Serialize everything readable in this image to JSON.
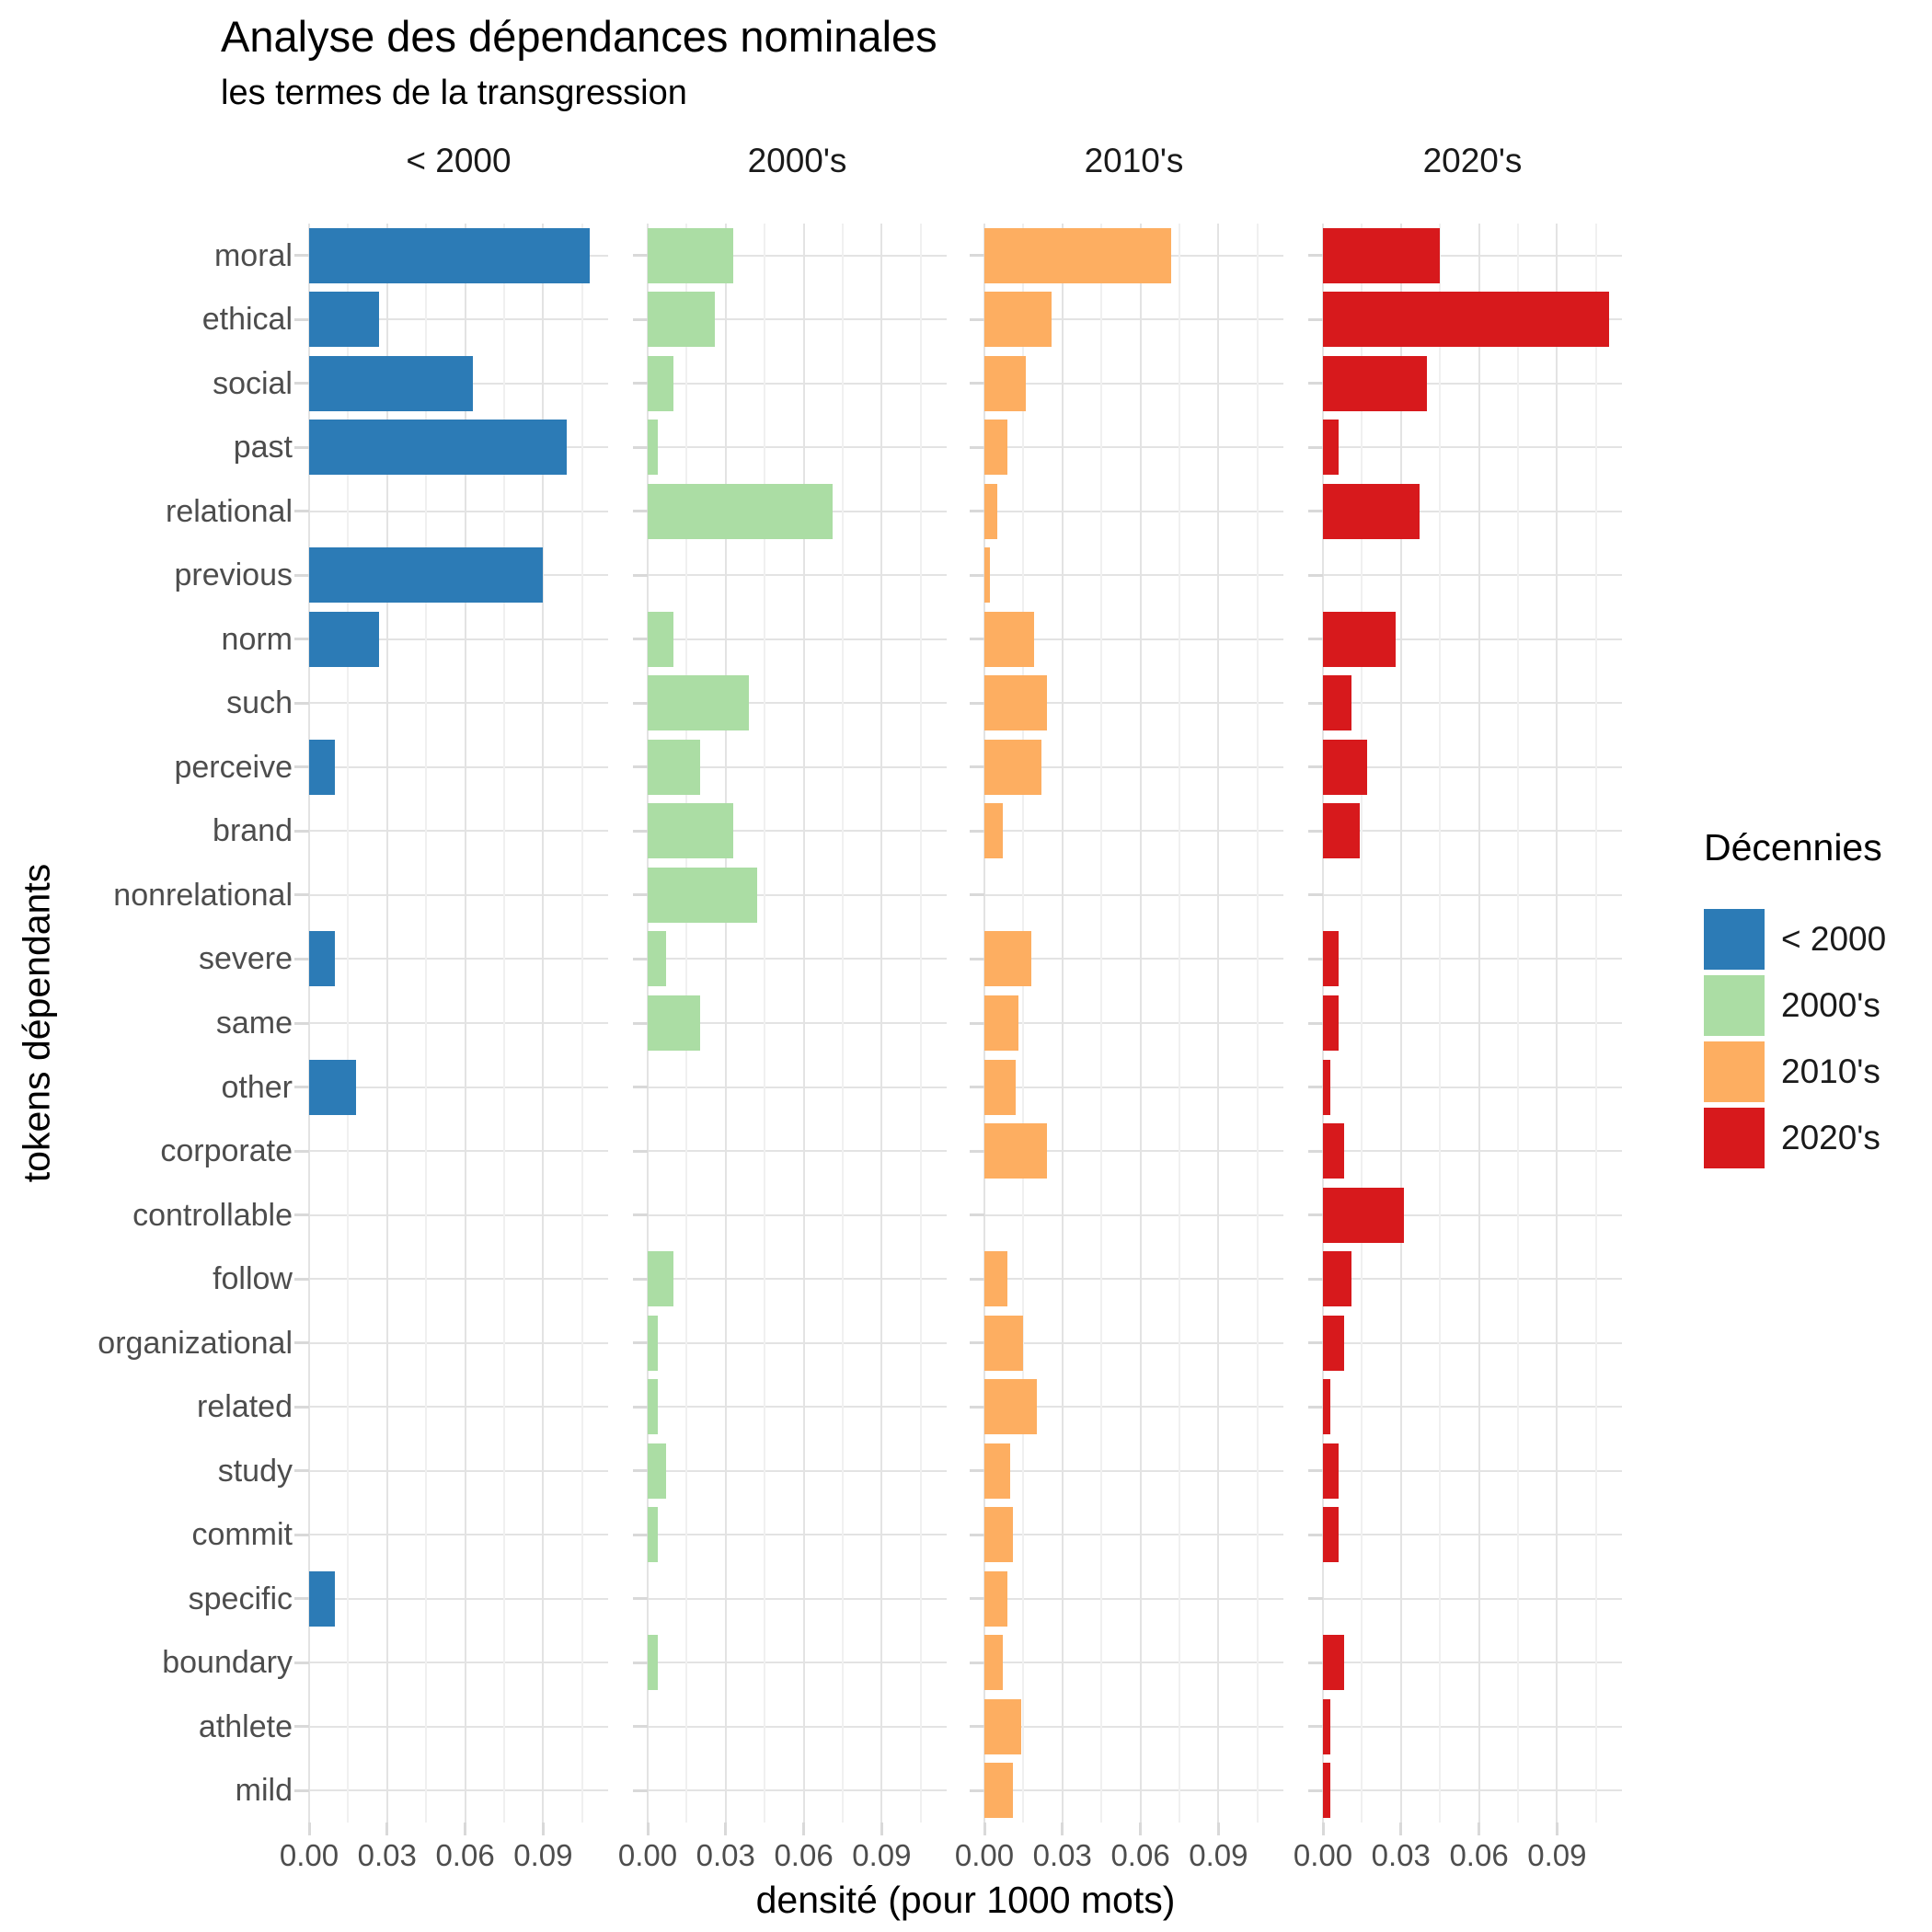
{
  "title": "Analyse des dépendances nominales",
  "subtitle": "les termes de la transgression",
  "axes": {
    "x_title": "densité (pour 1000 mots)",
    "y_title": "tokens dépendants",
    "x_tick_labels": [
      "0.00",
      "0.03",
      "0.06",
      "0.09"
    ]
  },
  "legend": {
    "title": "Décennies",
    "items": [
      {
        "label": "< 2000",
        "color": "#2C7BB6"
      },
      {
        "label": "2000's",
        "color": "#ABDDA4"
      },
      {
        "label": "2010's",
        "color": "#FDAE61"
      },
      {
        "label": "2020's",
        "color": "#D7191C"
      }
    ]
  },
  "chart_data": {
    "type": "bar",
    "orientation": "horizontal",
    "title": "Analyse des dépendances nominales",
    "subtitle": "les termes de la transgression",
    "xlabel": "densité (pour 1000 mots)",
    "ylabel": "tokens dépendants",
    "grid": true,
    "legend_position": "right",
    "facets": [
      "< 2000",
      "2000's",
      "2010's",
      "2020's"
    ],
    "xlim": [
      0,
      0.115
    ],
    "x_tick_values": [
      0,
      0.03,
      0.06,
      0.09
    ],
    "x_minor_tick_values": [
      0.015,
      0.045,
      0.075,
      0.105
    ],
    "categories": [
      "moral",
      "ethical",
      "social",
      "past",
      "relational",
      "previous",
      "norm",
      "such",
      "perceive",
      "brand",
      "nonrelational",
      "severe",
      "same",
      "other",
      "corporate",
      "controllable",
      "follow",
      "organizational",
      "related",
      "study",
      "commit",
      "specific",
      "boundary",
      "athlete",
      "mild"
    ],
    "series": [
      {
        "name": "< 2000",
        "key": "pre-2000",
        "color": "#2C7BB6",
        "values": [
          0.108,
          0.027,
          0.063,
          0.099,
          0,
          0.09,
          0.027,
          0,
          0.01,
          0,
          0,
          0.01,
          0,
          0.018,
          0,
          0,
          0,
          0,
          0,
          0,
          0,
          0.01,
          0,
          0,
          0
        ]
      },
      {
        "name": "2000's",
        "key": "2000s",
        "color": "#ABDDA4",
        "values": [
          0.033,
          0.026,
          0.01,
          0.004,
          0.071,
          0,
          0.01,
          0.039,
          0.02,
          0.033,
          0.042,
          0.007,
          0.02,
          0,
          0,
          0,
          0.01,
          0.004,
          0.004,
          0.007,
          0.004,
          0,
          0.004,
          0,
          0
        ]
      },
      {
        "name": "2010's",
        "key": "2010s",
        "color": "#FDAE61",
        "values": [
          0.072,
          0.026,
          0.016,
          0.009,
          0.005,
          0.002,
          0.019,
          0.024,
          0.022,
          0.007,
          0,
          0.018,
          0.013,
          0.012,
          0.024,
          0,
          0.009,
          0.015,
          0.02,
          0.01,
          0.011,
          0.009,
          0.007,
          0.014,
          0.011
        ]
      },
      {
        "name": "2020's",
        "key": "2020s",
        "color": "#D7191C",
        "values": [
          0.045,
          0.11,
          0.04,
          0.006,
          0.037,
          0,
          0.028,
          0.011,
          0.017,
          0.014,
          0,
          0.006,
          0.006,
          0.003,
          0.008,
          0.031,
          0.011,
          0.008,
          0.003,
          0.006,
          0.006,
          0,
          0.008,
          0.003,
          0.003
        ]
      }
    ]
  }
}
